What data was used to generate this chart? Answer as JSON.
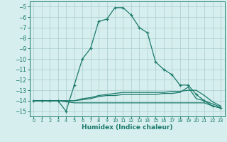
{
  "xlabel": "Humidex (Indice chaleur)",
  "background_color": "#d6eeee",
  "grid_color": "#aacccc",
  "line_color": "#1a7a6a",
  "xlim": [
    -0.5,
    23.5
  ],
  "ylim": [
    -15.5,
    -4.5
  ],
  "yticks": [
    -5,
    -6,
    -7,
    -8,
    -9,
    -10,
    -11,
    -12,
    -13,
    -14,
    -15
  ],
  "xticks": [
    0,
    1,
    2,
    3,
    4,
    5,
    6,
    7,
    8,
    9,
    10,
    11,
    12,
    13,
    14,
    15,
    16,
    17,
    18,
    19,
    20,
    21,
    22,
    23
  ],
  "series": [
    {
      "x": [
        0,
        1,
        2,
        3,
        4,
        5,
        6,
        7,
        8,
        9,
        10,
        11,
        12,
        13,
        14,
        15,
        16,
        17,
        18,
        19,
        20,
        21,
        22,
        23
      ],
      "y": [
        -14,
        -14,
        -14,
        -14,
        -15,
        -12.5,
        -10,
        -9,
        -6.4,
        -6.2,
        -5.1,
        -5.1,
        -5.8,
        -7,
        -7.5,
        -10.3,
        -11,
        -11.5,
        -12.5,
        -12.5,
        -13.4,
        -14,
        -14.5,
        -14.7
      ],
      "marker": "+"
    },
    {
      "x": [
        0,
        1,
        2,
        3,
        4,
        5,
        6,
        7,
        8,
        9,
        10,
        11,
        12,
        13,
        14,
        15,
        16,
        17,
        18,
        19,
        20,
        21,
        22,
        23
      ],
      "y": [
        -14,
        -14,
        -14,
        -14,
        -14,
        -14,
        -13.8,
        -13.7,
        -13.5,
        -13.4,
        -13.3,
        -13.2,
        -13.2,
        -13.2,
        -13.2,
        -13.2,
        -13.2,
        -13.1,
        -13.1,
        -13.0,
        -13.0,
        -13.5,
        -14.1,
        -14.5
      ],
      "marker": null
    },
    {
      "x": [
        0,
        1,
        2,
        3,
        4,
        5,
        6,
        7,
        8,
        9,
        10,
        11,
        12,
        13,
        14,
        15,
        16,
        17,
        18,
        19,
        20,
        21,
        22,
        23
      ],
      "y": [
        -14,
        -14,
        -14,
        -14,
        -14.1,
        -14.2,
        -14.2,
        -14.2,
        -14.2,
        -14.2,
        -14.2,
        -14.2,
        -14.2,
        -14.2,
        -14.2,
        -14.2,
        -14.2,
        -14.2,
        -14.2,
        -14.2,
        -14.2,
        -14.2,
        -14.5,
        -14.7
      ],
      "marker": null
    },
    {
      "x": [
        0,
        1,
        2,
        3,
        4,
        5,
        6,
        7,
        8,
        9,
        10,
        11,
        12,
        13,
        14,
        15,
        16,
        17,
        18,
        19,
        20,
        21,
        22,
        23
      ],
      "y": [
        -14,
        -14,
        -14,
        -14,
        -14,
        -14,
        -13.9,
        -13.8,
        -13.6,
        -13.5,
        -13.5,
        -13.4,
        -13.4,
        -13.4,
        -13.4,
        -13.4,
        -13.3,
        -13.3,
        -13.2,
        -12.7,
        -13.8,
        -14,
        -14.3,
        -14.6
      ],
      "marker": null
    }
  ]
}
